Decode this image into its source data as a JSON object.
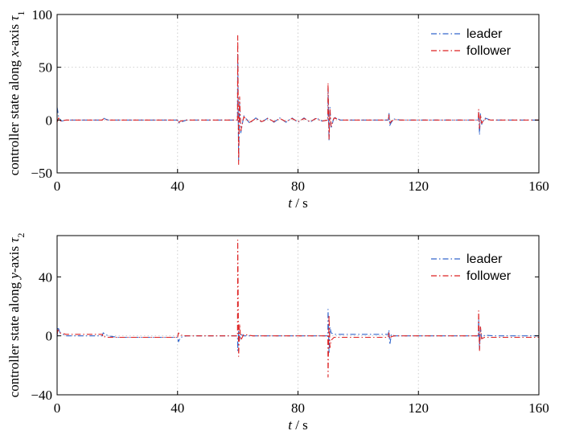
{
  "chart_data": [
    {
      "type": "line",
      "ylabel_parts": [
        "controller state along ",
        "x",
        "-axis ",
        "τ",
        "1"
      ],
      "xlabel_parts": [
        "t",
        " / s"
      ],
      "xlim": [
        0,
        160
      ],
      "ylim": [
        -50,
        100
      ],
      "xticks": [
        0,
        40,
        80,
        120,
        160
      ],
      "yticks": [
        -50,
        0,
        50,
        100
      ],
      "xtick_labels": [
        "0",
        "40",
        "80",
        "120",
        "160"
      ],
      "ytick_labels": [
        "−50",
        "0",
        "50",
        "100"
      ],
      "grid": true,
      "legend_position": "top-right",
      "series": [
        {
          "name": "leader",
          "color": "#3366cc",
          "dash": "dashdot",
          "x": [
            0,
            0.2,
            0.5,
            1,
            1.5,
            3,
            15,
            15.3,
            16,
            17,
            40,
            40.3,
            41,
            43,
            59.9,
            60,
            60.3,
            60.6,
            61,
            62,
            64,
            66,
            68,
            70,
            72,
            74,
            76,
            78,
            80,
            82,
            84,
            86,
            88,
            89.9,
            90,
            90.3,
            90.6,
            91,
            92,
            94,
            110,
            110.2,
            110.5,
            111,
            112,
            114,
            139.9,
            140,
            140.3,
            140.6,
            141,
            142,
            144,
            160
          ],
          "y": [
            12,
            9,
            3,
            0.5,
            -1,
            0,
            0,
            2,
            1,
            0,
            0,
            -3,
            -2,
            0,
            0,
            62,
            -38,
            18,
            -12,
            4,
            -3,
            2,
            -2,
            2,
            -2,
            2,
            -2,
            2,
            -2,
            2,
            -2,
            2,
            -1,
            0,
            30,
            -20,
            12,
            -8,
            3,
            0,
            0,
            7,
            -5,
            -2,
            1,
            0,
            0,
            8,
            -14,
            6,
            -4,
            2,
            0,
            0
          ]
        },
        {
          "name": "follower",
          "color": "#dd2222",
          "dash": "dashdot",
          "x": [
            0,
            0.5,
            1,
            3,
            15,
            15.3,
            16,
            17,
            40,
            40.3,
            41,
            43,
            59.9,
            60,
            60.3,
            60.6,
            61,
            62,
            64,
            66,
            68,
            70,
            72,
            74,
            76,
            78,
            80,
            82,
            84,
            86,
            88,
            89.9,
            90,
            90.3,
            90.6,
            91,
            92,
            94,
            110,
            110.2,
            110.5,
            111,
            112,
            114,
            139.9,
            140,
            140.3,
            140.6,
            141,
            142,
            144,
            160
          ],
          "y": [
            -2,
            2,
            -1,
            0,
            0,
            1,
            0.5,
            0,
            0,
            -2,
            -1,
            0,
            0,
            80,
            -42,
            22,
            -10,
            3,
            -2,
            1.5,
            -1.5,
            1.5,
            -1.5,
            1.5,
            -1.5,
            1.5,
            -1.5,
            1.5,
            -1.5,
            1.5,
            -1,
            0,
            35,
            -18,
            10,
            -6,
            2,
            0,
            0,
            5,
            -3,
            -1,
            0.5,
            0,
            0,
            10,
            -8,
            5,
            -3,
            1,
            0,
            0
          ]
        }
      ]
    },
    {
      "type": "line",
      "ylabel_parts": [
        "controller state along ",
        "y",
        "-axis ",
        "τ",
        "2"
      ],
      "xlabel_parts": [
        "t",
        " / s"
      ],
      "xlim": [
        0,
        160
      ],
      "ylim": [
        -40,
        68
      ],
      "xticks": [
        0,
        40,
        80,
        120,
        160
      ],
      "yticks": [
        -40,
        0,
        40
      ],
      "xtick_labels": [
        "0",
        "40",
        "80",
        "120",
        "160"
      ],
      "ytick_labels": [
        "−40",
        "0",
        "40"
      ],
      "grid": true,
      "legend_position": "top-right",
      "series": [
        {
          "name": "leader",
          "color": "#3366cc",
          "dash": "dashdot",
          "x": [
            0,
            0.3,
            1,
            3,
            15,
            15.3,
            16,
            17,
            20,
            40,
            40.3,
            41,
            43,
            59.9,
            60,
            60.3,
            60.6,
            61,
            62,
            65,
            80,
            89.9,
            90,
            90.3,
            90.6,
            91,
            92,
            95,
            110,
            110.2,
            110.5,
            111,
            112,
            115,
            139.9,
            140,
            140.3,
            140.6,
            141,
            142,
            145,
            160
          ],
          "y": [
            -1,
            6,
            2,
            0,
            0,
            2,
            1,
            0,
            -1,
            -1,
            -4,
            -1,
            0,
            0,
            -10,
            4,
            -3,
            1,
            0,
            0,
            0,
            0,
            18,
            -12,
            6,
            2,
            1,
            1,
            1,
            4,
            -6,
            1,
            0,
            0,
            0,
            12,
            -9,
            6,
            -2,
            0.5,
            0,
            0
          ]
        },
        {
          "name": "follower",
          "color": "#dd2222",
          "dash": "dashdot",
          "x": [
            0,
            0.3,
            1,
            3,
            15,
            15.3,
            16,
            17,
            20,
            40,
            40.3,
            41,
            43,
            59.9,
            60,
            60.3,
            60.6,
            61,
            62,
            65,
            80,
            89.9,
            90,
            90.3,
            90.6,
            91,
            92,
            95,
            110,
            110.2,
            110.5,
            111,
            112,
            115,
            139.9,
            140,
            140.3,
            140.6,
            141,
            142,
            145,
            160
          ],
          "y": [
            1,
            4,
            2,
            1,
            1,
            -1,
            -0.5,
            -1,
            -1,
            -1,
            2,
            0.5,
            0,
            0,
            65,
            -14,
            8,
            -3,
            1,
            0,
            0,
            0,
            -28,
            14,
            -8,
            -3,
            -1,
            -1,
            -1,
            2,
            -2,
            -0.5,
            0,
            0,
            0,
            17,
            -10,
            6,
            -2,
            -1,
            -1,
            -1
          ]
        }
      ]
    }
  ]
}
